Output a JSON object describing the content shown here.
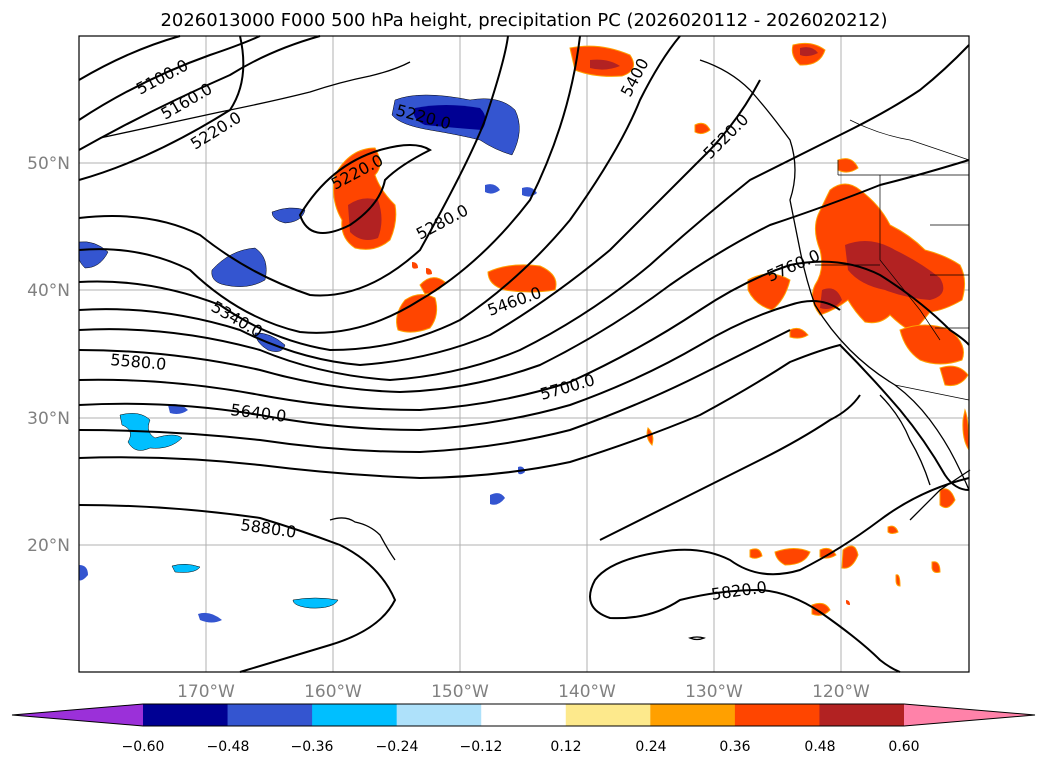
{
  "title": "2026013000 F000 500 hPa height, precipitation PC (2026020112 - 2026020212)",
  "map": {
    "lat_ticks": [
      "20°N",
      "30°N",
      "40°N",
      "50°N"
    ],
    "lon_ticks": [
      "170°W",
      "160°W",
      "150°W",
      "140°W",
      "130°W",
      "120°W"
    ],
    "contour_labels": [
      "5100.0",
      "5160.0",
      "5220.0",
      "5220.0",
      "5220.0",
      "5280.0",
      "5340.0",
      "5400",
      "5460.0",
      "5520.0",
      "5580.0",
      "5640.0",
      "5700.0",
      "5760.0",
      "5820.0",
      "5880.0"
    ]
  },
  "colorbar": {
    "tick_labels": [
      "−0.60",
      "−0.48",
      "−0.36",
      "−0.24",
      "−0.12",
      "0.12",
      "0.24",
      "0.36",
      "0.48",
      "0.60"
    ],
    "colors": [
      "#9b30d9",
      "#000093",
      "#3455d0",
      "#00bfff",
      "#aee1fa",
      "#ffffff",
      "#fde98c",
      "#ffa000",
      "#ff4500",
      "#b22222",
      "#ff82a9"
    ]
  }
}
